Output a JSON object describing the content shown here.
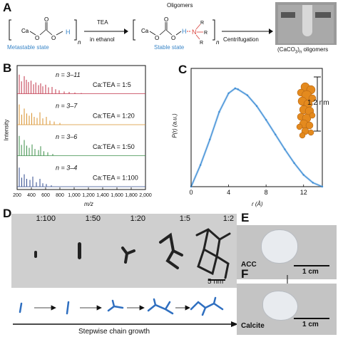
{
  "panels": {
    "A": {
      "letter": "A",
      "reactant": {
        "formula_left": "Ca",
        "formula_o": "O",
        "formula_h": "H",
        "subscript": "n",
        "state": "Metastable state"
      },
      "reagent_top": "TEA",
      "reagent_bottom": "in ethanol",
      "product": {
        "title": "Oligomers",
        "formula_left": "Ca",
        "formula_h": "H",
        "formula_n": "N",
        "formula_r": "R",
        "subscript": "n",
        "state": "Stable state"
      },
      "process": "Centrifugation",
      "product_label": "(CaCO3)n oligomers",
      "colors": {
        "state_text": "#3a86c8",
        "amine": "#d9403b",
        "hydrogen": "#3a86c8"
      }
    },
    "B": {
      "letter": "B",
      "ylabel": "Intensity",
      "xlabel": "m/z",
      "chart_data": {
        "type": "bar",
        "title": "",
        "xlabel": "m/z",
        "ylabel": "Intensity",
        "xlim": [
          200,
          2000
        ],
        "xticks": [
          "200",
          "400",
          "600",
          "800",
          "1,000",
          "1,200",
          "1,400",
          "1,600",
          "1,800",
          "2,000"
        ],
        "series": [
          {
            "name": "n = 3–11",
            "ratio": "Ca:TEA = 1:5",
            "color": "#c0354a",
            "peaks": [
              [
                230,
                0.85
              ],
              [
                262,
                0.55
              ],
              [
                300,
                0.78
              ],
              [
                330,
                0.62
              ],
              [
                360,
                0.52
              ],
              [
                395,
                0.58
              ],
              [
                430,
                0.42
              ],
              [
                462,
                0.5
              ],
              [
                500,
                0.38
              ],
              [
                530,
                0.46
              ],
              [
                560,
                0.33
              ],
              [
                600,
                0.4
              ],
              [
                640,
                0.28
              ],
              [
                690,
                0.3
              ],
              [
                740,
                0.2
              ],
              [
                790,
                0.15
              ],
              [
                860,
                0.1
              ],
              [
                930,
                0.08
              ],
              [
                1010,
                0.05
              ],
              [
                1100,
                0.03
              ]
            ]
          },
          {
            "name": "n = 3–7",
            "ratio": "Ca:TEA = 1:20",
            "color": "#d9922e",
            "peaks": [
              [
                230,
                0.9
              ],
              [
                265,
                0.45
              ],
              [
                300,
                0.72
              ],
              [
                335,
                0.5
              ],
              [
                370,
                0.4
              ],
              [
                405,
                0.52
              ],
              [
                440,
                0.35
              ],
              [
                480,
                0.3
              ],
              [
                520,
                0.55
              ],
              [
                560,
                0.28
              ],
              [
                610,
                0.35
              ],
              [
                660,
                0.18
              ],
              [
                720,
                0.14
              ],
              [
                800,
                0.08
              ]
            ]
          },
          {
            "name": "n = 3–6",
            "ratio": "Ca:TEA = 1:50",
            "color": "#3d8f4a",
            "peaks": [
              [
                230,
                0.88
              ],
              [
                262,
                0.48
              ],
              [
                300,
                0.7
              ],
              [
                335,
                0.45
              ],
              [
                370,
                0.35
              ],
              [
                410,
                0.5
              ],
              [
                450,
                0.3
              ],
              [
                500,
                0.25
              ],
              [
                530,
                0.42
              ],
              [
                575,
                0.2
              ],
              [
                630,
                0.15
              ],
              [
                700,
                0.08
              ]
            ]
          },
          {
            "name": "n = 3–4",
            "ratio": "Ca:TEA = 1:100",
            "color": "#2f4a8c",
            "peaks": [
              [
                230,
                0.85
              ],
              [
                265,
                0.4
              ],
              [
                300,
                0.55
              ],
              [
                335,
                0.35
              ],
              [
                380,
                0.3
              ],
              [
                420,
                0.45
              ],
              [
                470,
                0.2
              ],
              [
                520,
                0.35
              ],
              [
                560,
                0.15
              ],
              [
                610,
                0.12
              ],
              [
                680,
                0.06
              ]
            ]
          }
        ]
      }
    },
    "C": {
      "letter": "C",
      "ylabel": "P(r) (a.u.)",
      "xlabel": "r (Å)",
      "size_label": "1.2 nm",
      "chart_data": {
        "type": "line",
        "xlabel": "r (Å)",
        "ylabel": "P(r) (a.u.)",
        "xlim": [
          0,
          14
        ],
        "xticks": [
          "0",
          "4",
          "8",
          "12"
        ],
        "x": [
          0,
          1,
          2,
          3,
          4,
          4.7,
          5,
          6,
          7,
          8,
          9,
          10,
          11,
          12,
          13,
          14
        ],
        "y": [
          0,
          0.22,
          0.48,
          0.76,
          0.95,
          1.0,
          0.99,
          0.93,
          0.82,
          0.68,
          0.53,
          0.38,
          0.24,
          0.12,
          0.04,
          0
        ],
        "color": "#3f8ed6"
      }
    },
    "D": {
      "letter": "D",
      "ratios": [
        "1:100",
        "1:50",
        "1:20",
        "1:5",
        "1:2"
      ],
      "scale_bar": "5 nm",
      "arrow_label": "Stepwise chain growth",
      "schematic_color": "#2f6fc0"
    },
    "E": {
      "letter": "E",
      "sample": "ACC",
      "scale_bar": "1 cm"
    },
    "F": {
      "letter": "F",
      "sample": "Calcite",
      "scale_bar": "1 cm"
    }
  }
}
